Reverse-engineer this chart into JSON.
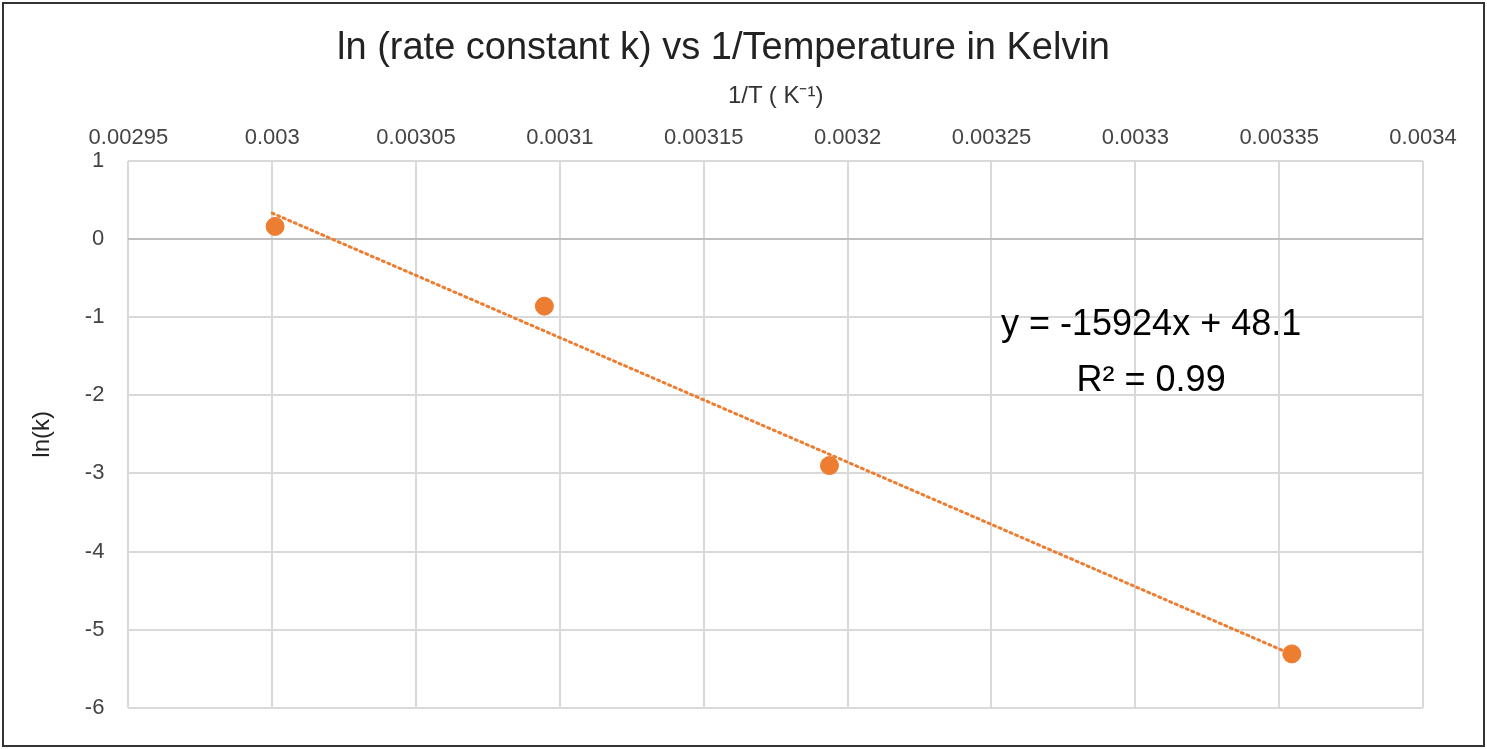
{
  "chart_data": {
    "type": "scatter",
    "title": "ln (rate constant k) vs 1/Temperature in Kelvin",
    "xlabel": "1/T ( K⁻¹)",
    "ylabel": "ln(k)",
    "series": [
      {
        "type": "scatter",
        "x": [
          0.003001,
          0.0030946,
          0.0031937,
          0.0033544
        ],
        "values": [
          0.16,
          -0.86,
          -2.9,
          -5.31
        ],
        "color": "#ed7d31",
        "marker": "circle"
      },
      {
        "type": "line",
        "x": [
          0.003,
          0.003354
        ],
        "values": [
          0.33,
          -5.31
        ],
        "color": "#ed7d31",
        "line_style": "dotted",
        "marker": "none"
      }
    ],
    "xlim": [
      0.00295,
      0.0034
    ],
    "xticks": [
      0.00295,
      0.003,
      0.00305,
      0.0031,
      0.00315,
      0.0032,
      0.00325,
      0.0033,
      0.00335,
      0.0034
    ],
    "ylim": [
      -6,
      1
    ],
    "yticks": [
      -6,
      -5,
      -4,
      -3,
      -2,
      -1,
      0,
      1
    ],
    "annotations": [
      "y = -15924x + 48.1",
      "R² = 0.99"
    ],
    "grid": true,
    "legend": false
  }
}
